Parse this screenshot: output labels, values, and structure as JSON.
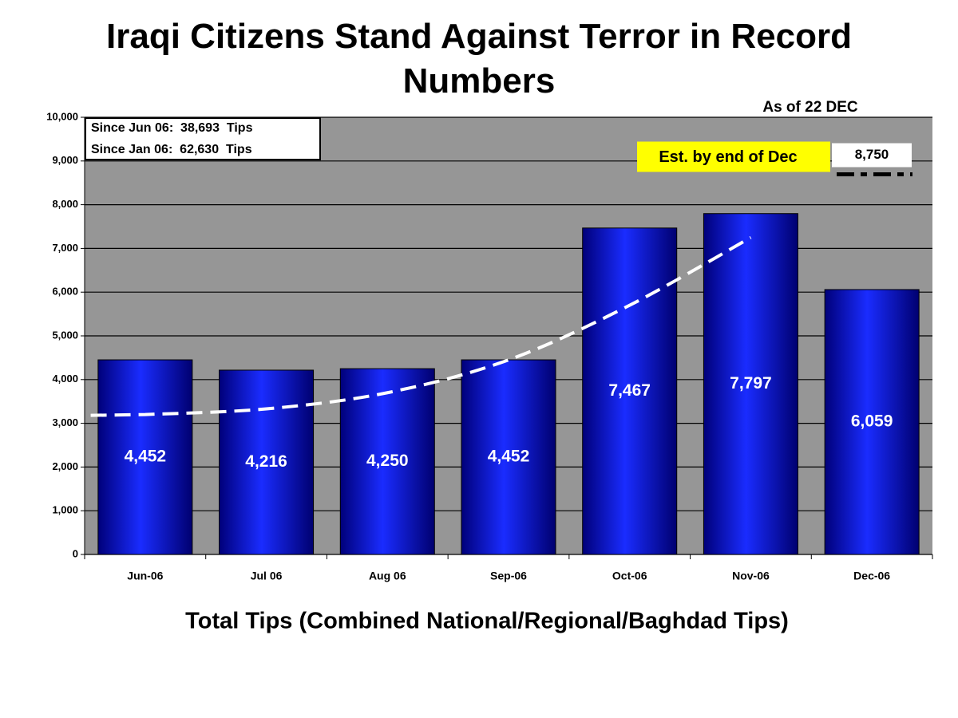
{
  "chart_data": {
    "type": "bar",
    "title": "Iraqi Citizens Stand Against Terror in Record Numbers",
    "subtitle": "As of 22 DEC",
    "x_label": "Total Tips (Combined National/Regional/Baghdad Tips)",
    "categories": [
      "Jun-06",
      "Jul 06",
      "Aug 06",
      "Sep-06",
      "Oct-06",
      "Nov-06",
      "Dec-06"
    ],
    "values": [
      4452,
      4216,
      4250,
      4452,
      7467,
      7797,
      6059
    ],
    "value_labels": [
      "4,452",
      "4,216",
      "4,250",
      "4,452",
      "7,467",
      "7,797",
      "6,059"
    ],
    "color": "#0a14d8",
    "trend": {
      "values": [
        3200,
        3330,
        3700,
        4450,
        5700,
        7250,
        null
      ],
      "color": "#ffffff"
    },
    "estimate": {
      "label": "Est. by end of Dec",
      "value": 8750,
      "value_label": "8,750",
      "color": "#000000"
    },
    "annotations": [
      "Since Jun 06:  38,693  Tips",
      "Since Jan 06:  62,630  Tips"
    ],
    "ylim": [
      0,
      10000
    ],
    "yticks": [
      0,
      {
        "value": 1000,
        "label": "1,000"
      },
      {
        "value": 2000,
        "label": "2,000"
      },
      {
        "value": 3000,
        "label": "3,000"
      },
      {
        "value": 4000,
        "label": "4,000"
      },
      {
        "value": 5000,
        "label": "5,000"
      },
      {
        "value": 6000,
        "label": "6,000"
      },
      {
        "value": 7000,
        "label": "7,000"
      },
      {
        "value": 8000,
        "label": "8,000"
      },
      {
        "value": 9000,
        "label": "9,000"
      },
      {
        "value": 10000,
        "label": "10,000"
      }
    ],
    "grid": true
  }
}
